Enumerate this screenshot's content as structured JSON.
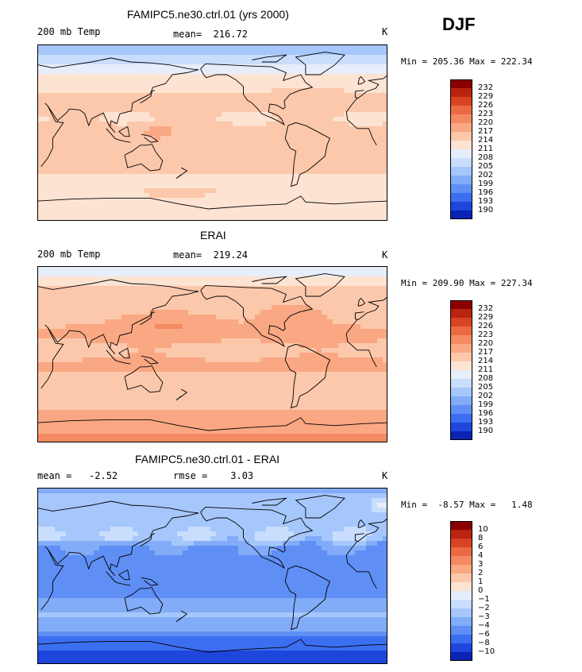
{
  "season": "DJF",
  "panels": [
    {
      "title": "FAMIPC5.ne30.ctrl.01 (yrs 2000)",
      "left_label": "200 mb Temp",
      "mid_label": "mean=  216.72",
      "units": "K",
      "minmax": "Min = 205.36 Max = 222.34",
      "type": "model"
    },
    {
      "title": "ERAI",
      "left_label": "200 mb Temp",
      "mid_label": "mean=  219.24",
      "units": "K",
      "minmax": "Min = 209.90 Max = 227.34",
      "type": "obs"
    },
    {
      "title": "FAMIPC5.ne30.ctrl.01 - ERAI",
      "left_label": "mean =   -2.52",
      "mid_label": "rmse =    3.03",
      "units": "K",
      "minmax": "Min =  -8.57 Max =   1.48",
      "type": "diff"
    }
  ],
  "colors": {
    "scale": [
      "#000080",
      "#0a23b4",
      "#1e46dc",
      "#3c6ef0",
      "#5f8ff5",
      "#82acf8",
      "#a6c7fb",
      "#c9ddfd",
      "#e6eefb",
      "#fde3d2",
      "#fcc8ab",
      "#f9a883",
      "#f48a62",
      "#ec6a43",
      "#d84423",
      "#b82410",
      "#8a0000"
    ]
  },
  "legends": {
    "abs_labels": [
      "232",
      "229",
      "226",
      "223",
      "220",
      "217",
      "214",
      "211",
      "208",
      "205",
      "202",
      "199",
      "196",
      "193",
      "190"
    ],
    "diff_labels": [
      "10",
      "8",
      "6",
      "4",
      "3",
      "2",
      "1",
      "0",
      "−1",
      "−2",
      "−3",
      "−4",
      "−6",
      "−8",
      "−10"
    ]
  },
  "chart_data": [
    {
      "type": "heatmap",
      "title": "FAMIPC5.ne30.ctrl.01 (yrs 2000)",
      "variable": "200 mb Temp",
      "units": "K",
      "mean": 216.72,
      "min": 205.36,
      "max": 222.34,
      "contour_levels": [
        190,
        193,
        196,
        199,
        202,
        205,
        208,
        211,
        214,
        217,
        220,
        223,
        226,
        229,
        232
      ],
      "projection": "cylindrical equidistant, Pacific-centered"
    },
    {
      "type": "heatmap",
      "title": "ERAI",
      "variable": "200 mb Temp",
      "units": "K",
      "mean": 219.24,
      "min": 209.9,
      "max": 227.34,
      "contour_levels": [
        190,
        193,
        196,
        199,
        202,
        205,
        208,
        211,
        214,
        217,
        220,
        223,
        226,
        229,
        232
      ],
      "projection": "cylindrical equidistant, Pacific-centered"
    },
    {
      "type": "heatmap",
      "title": "FAMIPC5.ne30.ctrl.01 - ERAI",
      "units": "K",
      "mean": -2.52,
      "rmse": 3.03,
      "min": -8.57,
      "max": 1.48,
      "contour_levels": [
        -10,
        -8,
        -6,
        -4,
        -3,
        -2,
        -1,
        0,
        1,
        2,
        3,
        4,
        6,
        8,
        10
      ],
      "projection": "cylindrical equidistant, Pacific-centered"
    }
  ]
}
